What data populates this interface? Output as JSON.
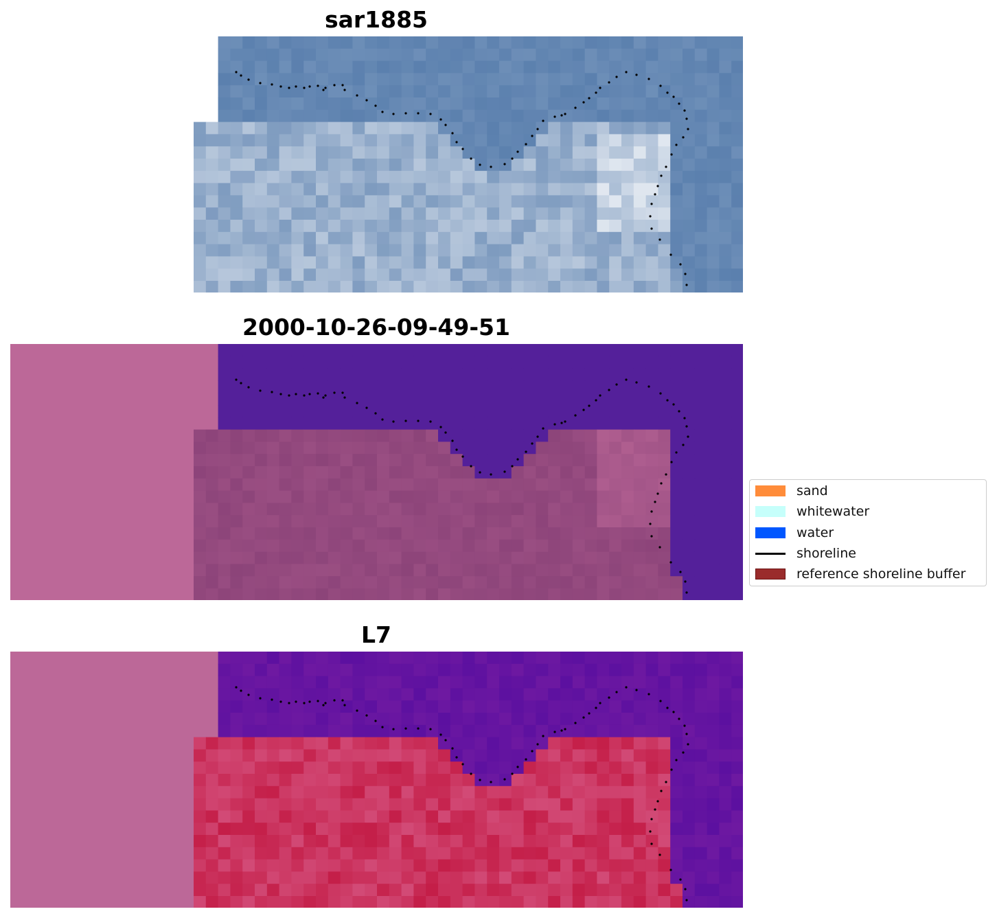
{
  "panels": [
    {
      "title": "sar1885"
    },
    {
      "title": "2000-10-26-09-49-51"
    },
    {
      "title": "L7"
    }
  ],
  "legend": {
    "items": [
      {
        "label": "sand",
        "color": "#ff8c3a",
        "kind": "patch"
      },
      {
        "label": "whitewater",
        "color": "#c6fffb",
        "kind": "patch"
      },
      {
        "label": "water",
        "color": "#0057ff",
        "kind": "patch"
      },
      {
        "label": "shoreline",
        "color": "#000000",
        "kind": "line"
      },
      {
        "label": "reference shoreline buffer",
        "color": "#9a2c2c",
        "kind": "patch"
      }
    ]
  },
  "colors": {
    "nodata": "#bc6898",
    "water_purple": "#54209a",
    "land_mauve": "#874076",
    "ocean_rgb": "#5b80ae",
    "beach_rgb": "#a8b8c6",
    "index_high": "#c41e48",
    "index_low": "#5c10a0"
  }
}
